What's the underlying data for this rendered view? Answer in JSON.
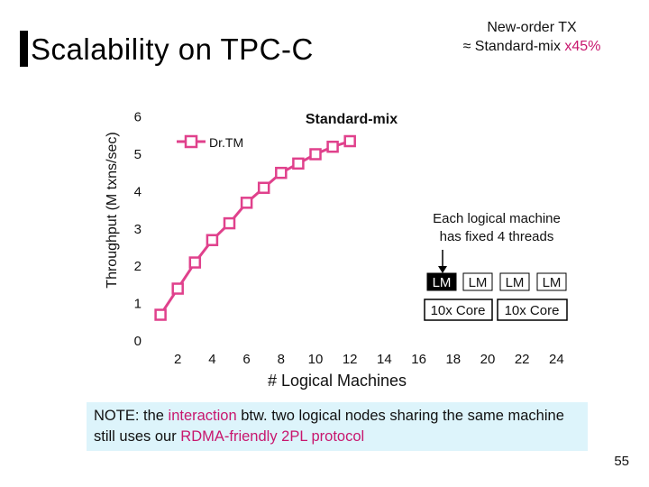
{
  "slide": {
    "title": "Scalability on TPC-C",
    "top_note_line1": "New-order TX",
    "top_note_line2_prefix": "≈ Standard-mix ",
    "top_note_line2_accent": "x45%",
    "page_number": "55",
    "accent_color": "#c8176e"
  },
  "note": {
    "part1": "NOTE: the ",
    "part2": "interaction",
    "part3": " btw. two logical nodes sharing the same machine still uses our ",
    "part4": "RDMA-friendly 2PL protocol"
  },
  "chart_data": {
    "type": "line",
    "title": "Standard-mix",
    "xlabel": "# Logical Machines",
    "ylabel": "Throughput (M txns/sec)",
    "x_ticks": [
      2,
      4,
      6,
      8,
      10,
      12,
      14,
      16,
      18,
      20,
      22,
      24
    ],
    "y_ticks": [
      0,
      1,
      2,
      3,
      4,
      5,
      6
    ],
    "xlim": [
      0,
      24
    ],
    "ylim": [
      0,
      6
    ],
    "grid": false,
    "legend_position": "top",
    "series": [
      {
        "name": "Dr.TM",
        "color": "#e0418c",
        "x": [
          1,
          2,
          3,
          4,
          5,
          6,
          7,
          8,
          9,
          10,
          11,
          12
        ],
        "y": [
          0.7,
          1.4,
          2.1,
          2.7,
          3.15,
          3.7,
          4.1,
          4.5,
          4.75,
          5.0,
          5.2,
          5.35
        ]
      }
    ],
    "annotation": {
      "text_line1": "Each logical machine",
      "text_line2": "has fixed 4 threads",
      "lm_label": "LM",
      "core_label": "10x Core"
    }
  }
}
